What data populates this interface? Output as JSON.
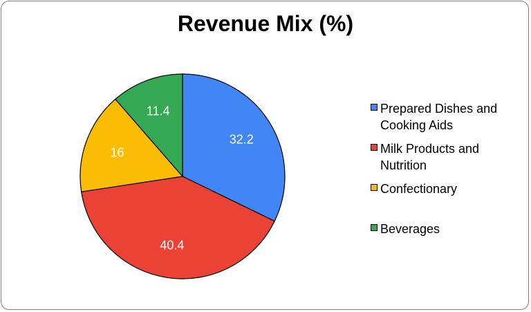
{
  "chart_data": {
    "type": "pie",
    "title": "Revenue Mix (%)",
    "slices": [
      {
        "label": "Prepared Dishes and Cooking Aids",
        "value": 32.2,
        "value_label": "32.2",
        "color": "#4285f4"
      },
      {
        "label": "Milk Products and Nutrition",
        "value": 40.4,
        "value_label": "40.4",
        "color": "#ea4335"
      },
      {
        "label": "Confectionary",
        "value": 16,
        "value_label": "16",
        "color": "#fbbc04"
      },
      {
        "label": "Beverages",
        "value": 11.4,
        "value_label": "11.4",
        "color": "#34a853"
      }
    ],
    "start": "top",
    "direction": "clockwise",
    "legend_position": "right"
  }
}
